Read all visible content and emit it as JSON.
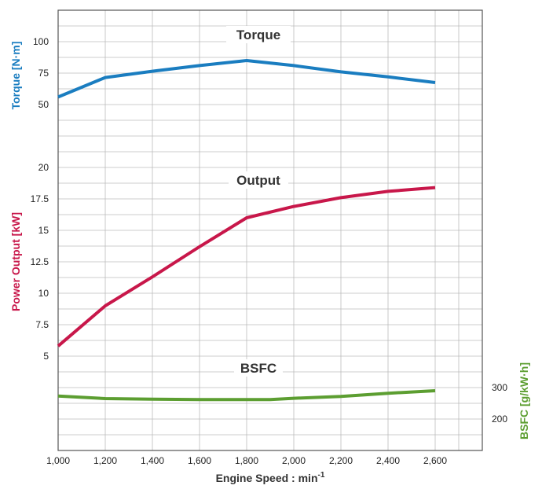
{
  "chart_data": {
    "type": "line",
    "xlabel": "Engine Speed : min",
    "xlabel_sup": "-1",
    "x_ticks": [
      "1,000",
      "1,200",
      "1,400",
      "1,600",
      "1,800",
      "2,000",
      "2,200",
      "2,400",
      "2,600"
    ],
    "xlim": [
      1000,
      2800
    ],
    "grid": true,
    "panels": [
      {
        "key": "torque",
        "axis_side": "left",
        "ylabel": "Torque [N·m]",
        "ylim": [
          37.5,
          125
        ],
        "y_ticks": [
          {
            "value": 50,
            "label": "50"
          },
          {
            "value": 75,
            "label": "75"
          },
          {
            "value": 100,
            "label": "100"
          }
        ],
        "series": [
          {
            "name": "Torque",
            "color": "#1a7dc0",
            "x": [
              1000,
              1200,
              1400,
              1600,
              1800,
              2000,
              2200,
              2400,
              2600
            ],
            "y": [
              56,
              71.5,
              76.5,
              81,
              85,
              81,
              76,
              72,
              67.5
            ]
          }
        ]
      },
      {
        "key": "output",
        "axis_side": "left",
        "ylabel": "Power Output [kW]",
        "ylim": [
          3.75,
          22.5
        ],
        "y_ticks": [
          {
            "value": 5,
            "label": "5"
          },
          {
            "value": 7.5,
            "label": "7.5"
          },
          {
            "value": 10,
            "label": "10"
          },
          {
            "value": 12.5,
            "label": "12.5"
          },
          {
            "value": 15,
            "label": "15"
          },
          {
            "value": 17.5,
            "label": "17.5"
          },
          {
            "value": 20,
            "label": "20"
          }
        ],
        "series": [
          {
            "name": "Output",
            "color": "#c8174a",
            "x": [
              1000,
              1200,
              1400,
              1600,
              1800,
              2000,
              2200,
              2400,
              2600
            ],
            "y": [
              5.8,
              9,
              11.3,
              13.7,
              16,
              16.9,
              17.6,
              18.1,
              18.4
            ]
          }
        ]
      },
      {
        "key": "bsfc",
        "axis_side": "right",
        "ylabel": "BSFC [g/kW·h]",
        "ylim": [
          125,
          400
        ],
        "y_ticks": [
          {
            "value": 200,
            "label": "200"
          },
          {
            "value": 300,
            "label": "300"
          }
        ],
        "series": [
          {
            "name": "BSFC",
            "color": "#5c9e31",
            "x": [
              1000,
              1200,
              1400,
              1600,
              1800,
              1900,
              2000,
              2200,
              2400,
              2600
            ],
            "y": [
              273,
              265,
              263,
              262,
              262,
              262,
              266,
              272,
              282,
              290
            ]
          }
        ]
      }
    ]
  }
}
